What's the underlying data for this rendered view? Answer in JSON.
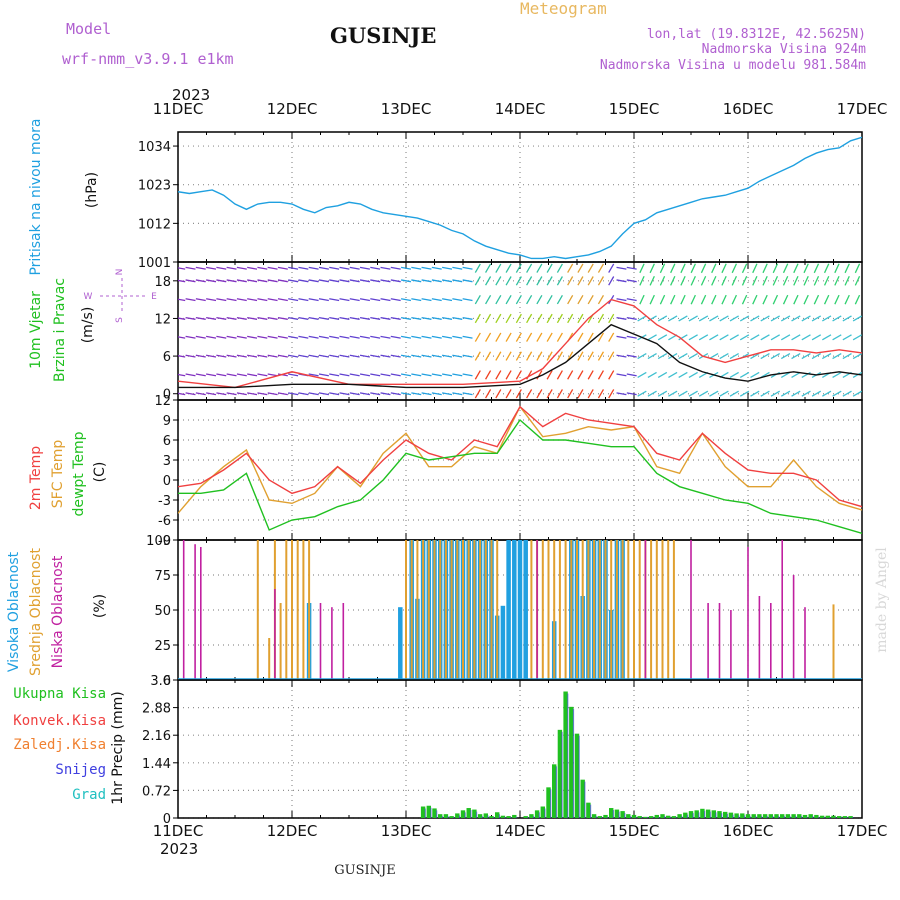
{
  "header": {
    "model_label": "Model",
    "model_name": "wrf-nmm_v3.9.1 e1km",
    "title": "GUSINJE",
    "meteogram": "Meteogram",
    "lonlat": "lon,lat (19.8312E, 42.5625N)",
    "elevation": "Nadmorska Visina 924m",
    "model_elevation": "Nadmorska Visina u modelu 981.584m",
    "year_top": "2023",
    "year_bottom": "2023",
    "footer_title": "GUSINJE",
    "watermark": "made by Angel"
  },
  "colors": {
    "pressure": "#1fa0e0",
    "temp2m": "#f04040",
    "sfc": "#e0a030",
    "dewpt": "#20c020",
    "high_cloud": "#20a0e0",
    "mid_cloud": "#e0a030",
    "low_cloud": "#c020a0",
    "precip_total": "#20c020",
    "precip_conv": "#f04040",
    "snow": "#4040e0",
    "hail": "#20c0c0",
    "grid": "#909090"
  },
  "chart_data": [
    {
      "id": "pressure",
      "type": "line",
      "ylabel_lines": [
        "Pritisak na nivou mora",
        "(hPa)"
      ],
      "x_labels": [
        "11DEC",
        "12DEC",
        "13DEC",
        "14DEC",
        "15DEC",
        "16DEC",
        "17DEC"
      ],
      "y_ticks": [
        "1001",
        "1012",
        "1023",
        "1034"
      ],
      "ylim": [
        1001,
        1038
      ],
      "series": [
        {
          "x": [
            0,
            0.1,
            0.2,
            0.3,
            0.4,
            0.5,
            0.6,
            0.7,
            0.8,
            0.9,
            1.0,
            1.1,
            1.2,
            1.3,
            1.4,
            1.5,
            1.6,
            1.7,
            1.8,
            1.9,
            2.0,
            2.1,
            2.2,
            2.3,
            2.4,
            2.5,
            2.6,
            2.7,
            2.8,
            2.9,
            3.0,
            3.1,
            3.2,
            3.3,
            3.4,
            3.5,
            3.6,
            3.7,
            3.8,
            3.9,
            4.0,
            4.1,
            4.2,
            4.3,
            4.4,
            4.5,
            4.6,
            4.7,
            4.8,
            4.9,
            5.0,
            5.1,
            5.2,
            5.3,
            5.4,
            5.5,
            5.6,
            5.7,
            5.8,
            5.9,
            6.0
          ],
          "values": [
            1021,
            1020.5,
            1021,
            1021.5,
            1020,
            1017.5,
            1016,
            1017.5,
            1018,
            1018,
            1017.5,
            1016,
            1015,
            1016.5,
            1017,
            1018,
            1017.5,
            1016,
            1015,
            1014.5,
            1014,
            1013.5,
            1012.5,
            1011.5,
            1010,
            1009,
            1007,
            1005.5,
            1004.5,
            1003.5,
            1003,
            1002,
            1002,
            1002.5,
            1002,
            1002.5,
            1003,
            1004,
            1005.5,
            1009,
            1012,
            1013,
            1015,
            1016,
            1017,
            1018,
            1019,
            1019.5,
            1020,
            1021,
            1022,
            1024,
            1025.5,
            1027,
            1028.5,
            1030.5,
            1032,
            1033,
            1033.5,
            1035.5,
            1036.5
          ]
        }
      ]
    },
    {
      "id": "wind",
      "type": "line",
      "ylabel_lines": [
        "10m Vjetar",
        "Brzina i Pravac",
        "(m/s)"
      ],
      "compass_labels": {
        "n": "N",
        "s": "S",
        "e": "E",
        "w": "W"
      },
      "x_labels": [
        "11DEC",
        "12DEC",
        "13DEC",
        "14DEC",
        "15DEC",
        "16DEC",
        "17DEC"
      ],
      "y_ticks": [
        "0",
        "6",
        "12",
        "18"
      ],
      "ylim": [
        -1,
        21
      ],
      "series": [
        {
          "name": "wind speed",
          "x": [
            0,
            0.5,
            1.0,
            1.5,
            2.0,
            2.5,
            3.0,
            3.2,
            3.4,
            3.6,
            3.8,
            4.0,
            4.2,
            4.4,
            4.6,
            4.8,
            5.0,
            5.2,
            5.4,
            5.6,
            5.8,
            6.0
          ],
          "values": [
            1,
            1,
            1.5,
            1.5,
            1,
            1,
            1.5,
            3,
            5,
            8,
            11,
            9.5,
            8,
            5,
            3.5,
            2.5,
            2,
            3,
            3.5,
            3,
            3.5,
            3
          ]
        },
        {
          "name": "wind gust",
          "x": [
            0,
            0.5,
            1.0,
            1.5,
            2.0,
            2.5,
            3.0,
            3.2,
            3.4,
            3.6,
            3.8,
            4.0,
            4.2,
            4.4,
            4.6,
            4.8,
            5.0,
            5.2,
            5.4,
            5.6,
            5.8,
            6.0
          ],
          "values": [
            2,
            1,
            3.5,
            1.5,
            1.5,
            1.5,
            2,
            4,
            8,
            12,
            15,
            14,
            11,
            9,
            6,
            5,
            6,
            7,
            7,
            6.5,
            7,
            6.5
          ]
        }
      ]
    },
    {
      "id": "temperature",
      "type": "line",
      "ylabel_lines": [
        "2m Temp",
        "SFC Temp",
        "dewpt Temp",
        "(C)"
      ],
      "x_labels": [
        "11DEC",
        "12DEC",
        "13DEC",
        "14DEC",
        "15DEC",
        "16DEC",
        "17DEC"
      ],
      "y_ticks": [
        "-9",
        "-6",
        "-3",
        "0",
        "3",
        "6",
        "9",
        "12"
      ],
      "ylim": [
        -9,
        12
      ],
      "series": [
        {
          "name": "2m Temp",
          "x": [
            0,
            0.2,
            0.4,
            0.6,
            0.8,
            1.0,
            1.2,
            1.4,
            1.6,
            1.8,
            2.0,
            2.2,
            2.4,
            2.6,
            2.8,
            3.0,
            3.2,
            3.4,
            3.6,
            3.8,
            4.0,
            4.2,
            4.4,
            4.6,
            4.8,
            5.0,
            5.2,
            5.4,
            5.6,
            5.8,
            6.0
          ],
          "values": [
            -1,
            -0.5,
            1.5,
            4,
            0,
            -2,
            -1,
            2,
            -0.5,
            3,
            6,
            4,
            3,
            6,
            5,
            11,
            8,
            10,
            9,
            8.5,
            8,
            4,
            3,
            7,
            4,
            1.5,
            1,
            1,
            0,
            -3,
            -4
          ]
        },
        {
          "name": "SFC Temp",
          "x": [
            0,
            0.2,
            0.4,
            0.6,
            0.8,
            1.0,
            1.2,
            1.4,
            1.6,
            1.8,
            2.0,
            2.2,
            2.4,
            2.6,
            2.8,
            3.0,
            3.2,
            3.4,
            3.6,
            3.8,
            4.0,
            4.2,
            4.4,
            4.6,
            4.8,
            5.0,
            5.2,
            5.4,
            5.6,
            5.8,
            6.0
          ],
          "values": [
            -5,
            -1,
            2,
            4.5,
            -3,
            -3.5,
            -2,
            2,
            -1,
            4,
            7,
            2,
            2,
            5,
            4,
            11,
            6.5,
            7,
            8,
            7.5,
            8,
            2,
            1,
            7,
            2,
            -1,
            -1,
            3,
            -1,
            -3.5,
            -4.5
          ]
        },
        {
          "name": "dewpt Temp",
          "x": [
            0,
            0.2,
            0.4,
            0.6,
            0.8,
            1.0,
            1.2,
            1.4,
            1.6,
            1.8,
            2.0,
            2.2,
            2.4,
            2.6,
            2.8,
            3.0,
            3.2,
            3.4,
            3.6,
            3.8,
            4.0,
            4.2,
            4.4,
            4.6,
            4.8,
            5.0,
            5.2,
            5.4,
            5.6,
            5.8,
            6.0
          ],
          "values": [
            -2,
            -2,
            -1.5,
            1,
            -7.5,
            -6,
            -5.5,
            -4,
            -3,
            0,
            4,
            3,
            3.5,
            4,
            4,
            9,
            6,
            6,
            5.5,
            5,
            5,
            1,
            -1,
            -2,
            -3,
            -3.5,
            -5,
            -5.5,
            -6,
            -7,
            -8
          ]
        }
      ]
    },
    {
      "id": "clouds",
      "type": "bar",
      "ylabel_lines": [
        "Visoka Oblacnost",
        "Srednja Oblacnost",
        "Niska Oblacnost",
        "(%)"
      ],
      "x_labels": [
        "11DEC",
        "12DEC",
        "13DEC",
        "14DEC",
        "15DEC",
        "16DEC",
        "17DEC"
      ],
      "y_ticks": [
        "0",
        "25",
        "50",
        "75",
        "100"
      ],
      "ylim": [
        0,
        100
      ],
      "series": [
        {
          "name": "Visoka Oblacnost",
          "x": [
            1.15,
            1.95,
            2.05,
            2.1,
            2.15,
            2.2,
            2.25,
            2.3,
            2.35,
            2.4,
            2.45,
            2.5,
            2.55,
            2.6,
            2.65,
            2.7,
            2.75,
            2.8,
            2.85,
            2.9,
            2.95,
            3.0,
            3.05,
            3.3,
            3.45,
            3.5,
            3.55,
            3.6,
            3.65,
            3.7,
            3.75,
            3.8,
            3.85,
            3.9
          ],
          "values": [
            55,
            52,
            100,
            58,
            100,
            100,
            100,
            100,
            100,
            100,
            100,
            100,
            100,
            100,
            100,
            100,
            100,
            46,
            53,
            100,
            100,
            100,
            100,
            42,
            100,
            100,
            60,
            100,
            100,
            100,
            100,
            50,
            100,
            100
          ]
        },
        {
          "name": "Srednja Oblacnost",
          "x": [
            0.7,
            0.8,
            0.85,
            0.9,
            0.95,
            1.0,
            1.05,
            1.1,
            1.15,
            2.0,
            2.05,
            2.1,
            2.15,
            2.2,
            2.25,
            2.3,
            2.35,
            2.4,
            2.45,
            2.5,
            2.55,
            2.6,
            2.65,
            2.7,
            2.75,
            2.8,
            3.1,
            3.15,
            3.2,
            3.25,
            3.3,
            3.35,
            3.4,
            3.45,
            3.5,
            3.55,
            3.6,
            3.65,
            3.7,
            3.75,
            3.8,
            3.85,
            3.9,
            3.95,
            4.0,
            4.05,
            4.1,
            4.15,
            4.2,
            4.25,
            4.3,
            4.35,
            5.75
          ],
          "values": [
            100,
            30,
            100,
            55,
            100,
            100,
            100,
            100,
            100,
            100,
            100,
            100,
            100,
            100,
            100,
            100,
            100,
            100,
            100,
            100,
            100,
            100,
            100,
            100,
            100,
            100,
            100,
            100,
            100,
            100,
            100,
            100,
            100,
            100,
            100,
            100,
            100,
            100,
            100,
            100,
            100,
            100,
            100,
            100,
            100,
            100,
            100,
            100,
            100,
            100,
            100,
            100,
            54
          ]
        },
        {
          "name": "Niska Oblacnost",
          "x": [
            0.05,
            0.15,
            0.2,
            0.85,
            1.25,
            1.35,
            1.45,
            3.15,
            4.1,
            4.5,
            4.65,
            4.75,
            4.85,
            5.0,
            5.1,
            5.2,
            5.3,
            5.4,
            5.5
          ],
          "values": [
            100,
            97,
            95,
            65,
            55,
            52,
            55,
            100,
            100,
            100,
            55,
            55,
            50,
            95,
            60,
            55,
            100,
            75,
            52
          ]
        }
      ]
    },
    {
      "id": "precip",
      "type": "bar",
      "ylabel_lines": [
        "1hr Precip (mm)"
      ],
      "legend": [
        "Ukupna Kisa",
        "Konvek.Kisa",
        "Zaledj.Kisa",
        "Snijeg",
        "Grad"
      ],
      "x_labels": [
        "11DEC",
        "12DEC",
        "13DEC",
        "14DEC",
        "15DEC",
        "16DEC",
        "17DEC"
      ],
      "y_ticks": [
        "0",
        "0.72",
        "1.44",
        "2.16",
        "2.88",
        "3.6"
      ],
      "ylim": [
        0,
        3.6
      ],
      "series": [
        {
          "name": "Ukupna Kisa",
          "x": [
            2.15,
            2.2,
            2.25,
            2.3,
            2.35,
            2.4,
            2.45,
            2.5,
            2.55,
            2.6,
            2.65,
            2.7,
            2.75,
            2.8,
            2.85,
            2.9,
            2.95,
            3.05,
            3.1,
            3.15,
            3.2,
            3.25,
            3.3,
            3.35,
            3.4,
            3.45,
            3.5,
            3.55,
            3.6,
            3.65,
            3.7,
            3.75,
            3.8,
            3.85,
            3.9,
            3.95,
            4.0,
            4.05,
            4.1,
            4.15,
            4.2,
            4.25,
            4.3,
            4.35,
            4.4,
            4.45,
            4.5,
            4.55,
            4.6,
            4.65,
            4.7,
            4.75,
            4.8,
            4.85,
            4.9,
            4.95,
            5.0,
            5.05,
            5.1,
            5.15,
            5.2,
            5.25,
            5.3,
            5.35,
            5.4,
            5.45,
            5.5,
            5.55,
            5.6,
            5.65,
            5.7,
            5.75,
            5.8,
            5.85,
            5.9
          ],
          "values": [
            0.3,
            0.32,
            0.25,
            0.1,
            0.1,
            0.05,
            0.12,
            0.2,
            0.26,
            0.22,
            0.1,
            0.12,
            0.05,
            0.15,
            0.06,
            0.05,
            0.08,
            0.05,
            0.1,
            0.2,
            0.3,
            0.8,
            1.4,
            2.3,
            3.3,
            2.9,
            2.2,
            1.0,
            0.4,
            0.1,
            0.05,
            0.08,
            0.26,
            0.22,
            0.18,
            0.1,
            0.08,
            0.05,
            0.03,
            0.05,
            0.08,
            0.1,
            0.06,
            0.05,
            0.1,
            0.14,
            0.18,
            0.2,
            0.24,
            0.22,
            0.2,
            0.18,
            0.16,
            0.14,
            0.12,
            0.12,
            0.1,
            0.1,
            0.1,
            0.1,
            0.1,
            0.1,
            0.1,
            0.1,
            0.1,
            0.1,
            0.08,
            0.1,
            0.08,
            0.06,
            0.06,
            0.06,
            0.05,
            0.05,
            0.05
          ]
        }
      ]
    }
  ]
}
